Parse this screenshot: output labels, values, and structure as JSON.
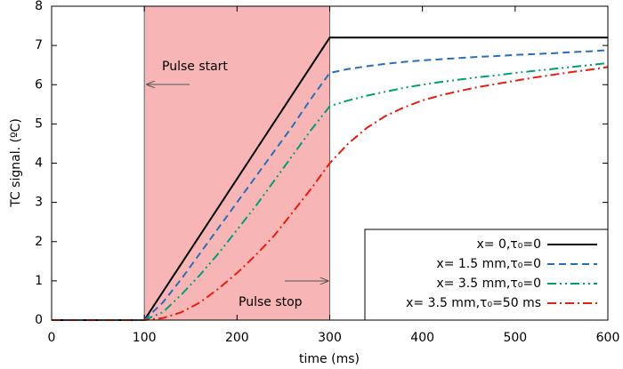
{
  "chart_data": {
    "type": "line",
    "x_label": "time (ms)",
    "y_label": "TC signal. (ºC)",
    "x": [
      0,
      20,
      40,
      60,
      80,
      100,
      120,
      140,
      160,
      180,
      200,
      220,
      240,
      260,
      280,
      300,
      320,
      340,
      360,
      380,
      400,
      420,
      440,
      460,
      480,
      500,
      520,
      540,
      560,
      580,
      600
    ],
    "series": [
      {
        "name": "x= 0,τ₀=0",
        "color": "#000000",
        "dash": "",
        "values": [
          0,
          0,
          0,
          0,
          0,
          0,
          0.72,
          1.44,
          2.16,
          2.88,
          3.6,
          4.32,
          5.04,
          5.76,
          6.48,
          7.2,
          7.2,
          7.2,
          7.2,
          7.2,
          7.2,
          7.2,
          7.2,
          7.2,
          7.2,
          7.2,
          7.2,
          7.2,
          7.2,
          7.2,
          7.2
        ]
      },
      {
        "name": "x= 1.5 mm,τ₀=0",
        "color": "#2a6ebb",
        "dash": "8,5",
        "values": [
          0,
          0,
          0,
          0,
          0,
          0,
          0.45,
          1.05,
          1.7,
          2.35,
          3.0,
          3.65,
          4.3,
          4.95,
          5.65,
          6.3,
          6.4,
          6.47,
          6.53,
          6.58,
          6.62,
          6.65,
          6.68,
          6.71,
          6.73,
          6.76,
          6.78,
          6.8,
          6.83,
          6.85,
          6.88
        ]
      },
      {
        "name": "x= 3.5 mm,τ₀=0",
        "color": "#009e73",
        "dash": "10,4,2,4,2,4",
        "values": [
          0,
          0,
          0,
          0,
          0,
          0,
          0.2,
          0.65,
          1.15,
          1.7,
          2.3,
          2.9,
          3.55,
          4.2,
          4.85,
          5.45,
          5.6,
          5.72,
          5.82,
          5.92,
          6.0,
          6.07,
          6.13,
          6.19,
          6.24,
          6.3,
          6.35,
          6.4,
          6.45,
          6.5,
          6.55
        ]
      },
      {
        "name": "x= 3.5 mm,τ₀=50 ms",
        "color": "#e51e10",
        "dash": "10,4,2,4",
        "values": [
          0,
          0,
          0,
          0,
          0,
          0,
          0.05,
          0.2,
          0.45,
          0.8,
          1.2,
          1.65,
          2.15,
          2.75,
          3.35,
          4.0,
          4.5,
          4.9,
          5.2,
          5.42,
          5.6,
          5.73,
          5.84,
          5.94,
          6.02,
          6.1,
          6.18,
          6.25,
          6.32,
          6.38,
          6.45
        ]
      }
    ],
    "shaded_region": [
      100,
      300
    ],
    "shade_color": "#f7b5b5",
    "annotations": [
      "Pulse start",
      "Pulse stop"
    ],
    "xlim": [
      0,
      600
    ],
    "xticks": [
      0,
      100,
      200,
      300,
      400,
      500,
      600
    ],
    "ylim": [
      0,
      8
    ],
    "yticks": [
      0,
      1,
      2,
      3,
      4,
      5,
      6,
      7,
      8
    ],
    "grid": false,
    "legend": "lower right"
  }
}
